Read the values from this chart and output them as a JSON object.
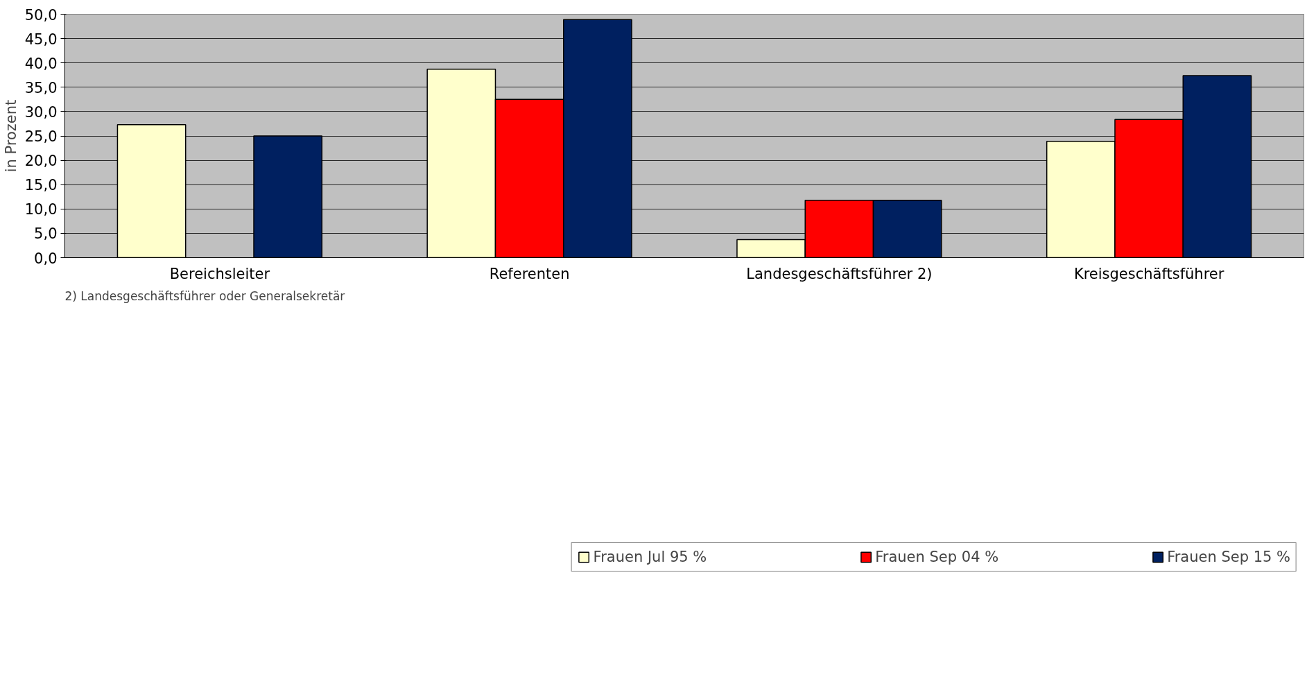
{
  "chart_data": {
    "type": "bar",
    "ylabel": "in Prozent",
    "categories": [
      "Bereichsleiter",
      "Referenten",
      "Landesgeschäftsführer 2)",
      "Kreisgeschäftsführer"
    ],
    "series": [
      {
        "name": "Frauen Jul 95 %",
        "color": "#ffffcc",
        "values": [
          27.3,
          38.7,
          3.7,
          23.9
        ]
      },
      {
        "name": "Frauen Sep 04 %",
        "color": "#ff0000",
        "values": [
          null,
          32.5,
          11.8,
          28.4
        ]
      },
      {
        "name": "Frauen Sep 15 %",
        "color": "#002060",
        "values": [
          25.0,
          48.9,
          11.8,
          37.4
        ]
      }
    ],
    "ylim": [
      0,
      50
    ],
    "yticks": [
      {
        "value": 0,
        "label": "0,0"
      },
      {
        "value": 5,
        "label": "5,0"
      },
      {
        "value": 10,
        "label": "10,0"
      },
      {
        "value": 15,
        "label": "15,0"
      },
      {
        "value": 20,
        "label": "20,0"
      },
      {
        "value": 25,
        "label": "25,0"
      },
      {
        "value": 30,
        "label": "30,0"
      },
      {
        "value": 35,
        "label": "35,0"
      },
      {
        "value": 40,
        "label": "40,0"
      },
      {
        "value": 45,
        "label": "45,0"
      },
      {
        "value": 50,
        "label": "50,0"
      }
    ],
    "grid": "y",
    "legend": "bottom",
    "annotations": [
      "2) Landesgeschäftsführer oder Generalsekretär"
    ]
  }
}
